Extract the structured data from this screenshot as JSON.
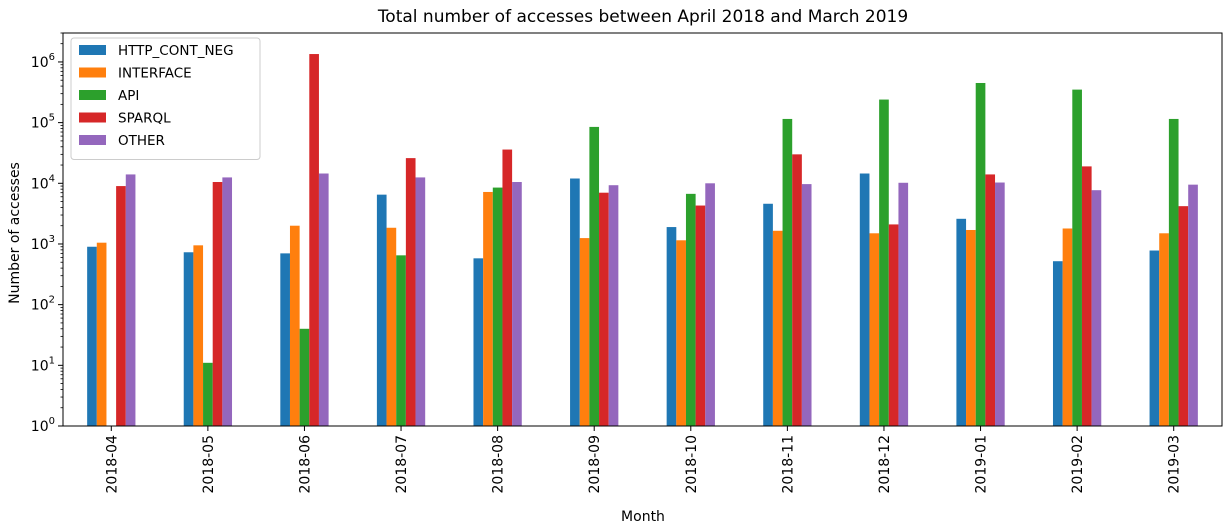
{
  "chart_data": {
    "type": "bar",
    "title": "Total number of accesses between April 2018 and March 2019",
    "xlabel": "Month",
    "ylabel": "Number of accesses",
    "yscale": "log",
    "ylim": [
      1,
      3000000
    ],
    "yticks": [
      {
        "value": 1,
        "base": "10",
        "exp": "0"
      },
      {
        "value": 10,
        "base": "10",
        "exp": "1"
      },
      {
        "value": 100,
        "base": "10",
        "exp": "2"
      },
      {
        "value": 1000,
        "base": "10",
        "exp": "3"
      },
      {
        "value": 10000,
        "base": "10",
        "exp": "4"
      },
      {
        "value": 100000,
        "base": "10",
        "exp": "5"
      },
      {
        "value": 1000000,
        "base": "10",
        "exp": "6"
      }
    ],
    "grid": false,
    "legend_position": "top-left",
    "categories": [
      "2018-04",
      "2018-05",
      "2018-06",
      "2018-07",
      "2018-08",
      "2018-09",
      "2018-10",
      "2018-11",
      "2018-12",
      "2019-01",
      "2019-02",
      "2019-03"
    ],
    "series": [
      {
        "name": "HTTP_CONT_NEG",
        "color": "#1f77b4",
        "values": [
          900,
          730,
          700,
          6500,
          580,
          12000,
          1900,
          4600,
          14500,
          2600,
          520,
          780
        ]
      },
      {
        "name": "INTERFACE",
        "color": "#ff7f0e",
        "values": [
          1050,
          950,
          2000,
          1850,
          7200,
          1250,
          1150,
          1650,
          1500,
          1700,
          1800,
          1500
        ]
      },
      {
        "name": "API",
        "color": "#2ca02c",
        "values": [
          null,
          11,
          40,
          650,
          8500,
          85000,
          6700,
          115000,
          240000,
          450000,
          350000,
          115000
        ]
      },
      {
        "name": "SPARQL",
        "color": "#d62728",
        "values": [
          9000,
          10500,
          1350000,
          26000,
          36000,
          7000,
          4300,
          30000,
          2100,
          14000,
          19000,
          4200
        ]
      },
      {
        "name": "OTHER",
        "color": "#9467bd",
        "values": [
          14000,
          12500,
          14500,
          12500,
          10500,
          9300,
          10000,
          9700,
          10200,
          10300,
          7700,
          9500
        ]
      }
    ]
  }
}
